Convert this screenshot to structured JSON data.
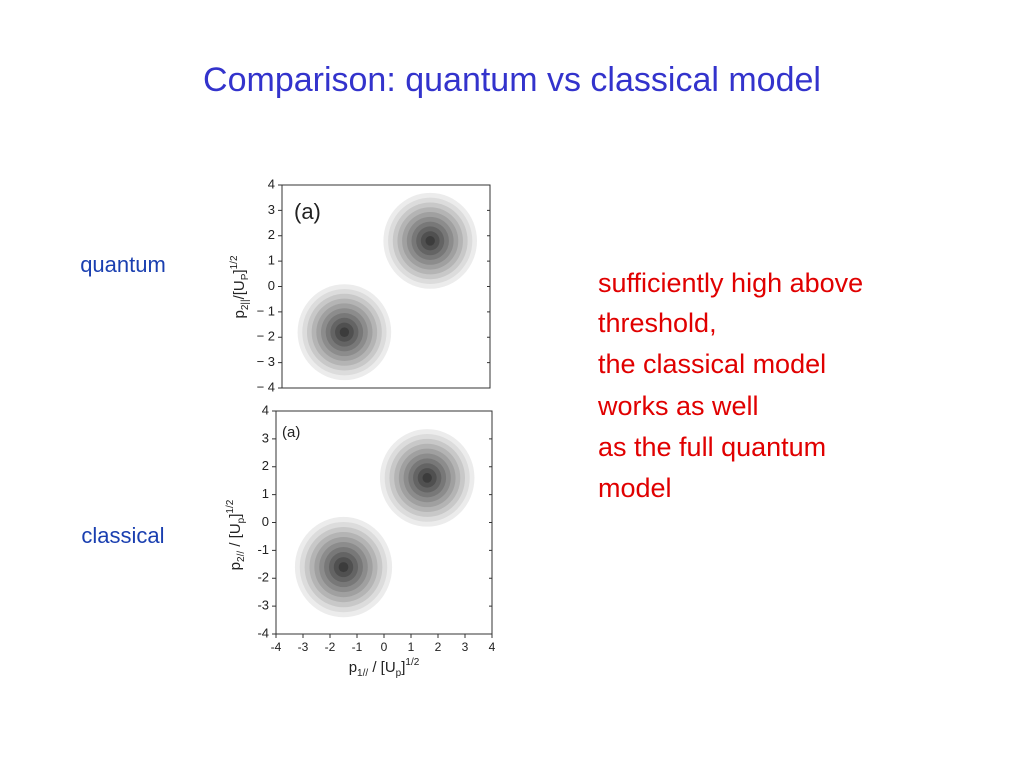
{
  "title": "Comparison: quantum vs classical model",
  "row_labels": [
    "quantum",
    "classical"
  ],
  "note_lines": [
    "sufficiently high above",
    "threshold,",
    "the classical model",
    "works as well",
    "as the full quantum",
    "model"
  ],
  "figures": [
    {
      "panel_label": "(a)",
      "xlim": [
        -4,
        4
      ],
      "ylim": [
        -4,
        4
      ],
      "yticks": [
        4,
        3,
        2,
        1,
        0,
        {
          "value": -1,
          "label": "− 1"
        },
        {
          "value": -2,
          "label": "− 2"
        },
        {
          "value": -3,
          "label": "− 3"
        },
        {
          "value": -4,
          "label": "− 4"
        }
      ],
      "y_label": [
        {
          "text": "p"
        },
        {
          "text": "2||",
          "shift": "sub"
        },
        {
          "text": "/[U"
        },
        {
          "text": "P",
          "shift": "sub"
        },
        {
          "text": "]"
        },
        {
          "text": "1/2",
          "shift": "super"
        }
      ],
      "blobs": [
        {
          "x": 1.7,
          "y": 1.8,
          "radius": 1.8
        },
        {
          "x": -1.6,
          "y": -1.8,
          "radius": 1.8
        }
      ]
    },
    {
      "panel_label": "(a)",
      "xlim": [
        -4,
        4
      ],
      "ylim": [
        -4,
        4
      ],
      "xticks": [
        -4,
        -3,
        -2,
        -1,
        0,
        1,
        2,
        3,
        4
      ],
      "yticks": [
        4,
        3,
        2,
        1,
        0,
        -1,
        -2,
        -3,
        -4
      ],
      "x_label": [
        {
          "text": "p"
        },
        {
          "text": "1//",
          "shift": "sub"
        },
        {
          "text": " / [U"
        },
        {
          "text": "p",
          "shift": "sub"
        },
        {
          "text": "]"
        },
        {
          "text": "1/2",
          "shift": "super"
        }
      ],
      "y_label": [
        {
          "text": "p"
        },
        {
          "text": "2//",
          "shift": "sub"
        },
        {
          "text": " / [U"
        },
        {
          "text": "p",
          "shift": "sub"
        },
        {
          "text": "]"
        },
        {
          "text": "1/2",
          "shift": "super"
        }
      ],
      "blobs": [
        {
          "x": 1.6,
          "y": 1.6,
          "radius": 1.75
        },
        {
          "x": -1.5,
          "y": -1.6,
          "radius": 1.8
        }
      ]
    }
  ]
}
